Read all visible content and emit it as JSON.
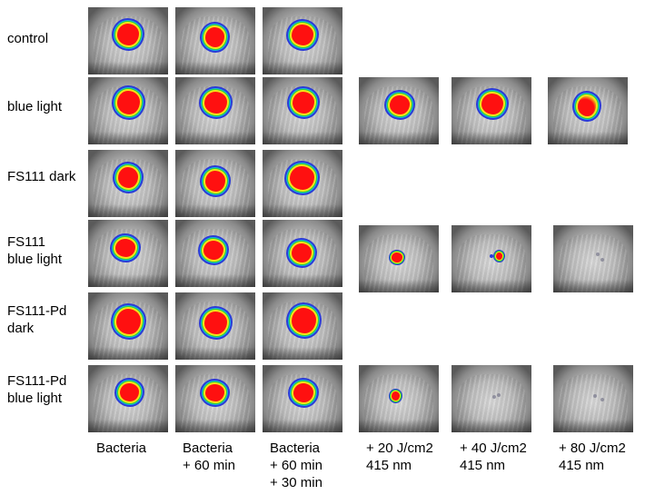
{
  "row_labels": [
    "control",
    "blue light",
    "FS111 dark",
    "FS111\nblue light",
    "FS111-Pd\ndark",
    "FS111-Pd\nblue light"
  ],
  "column_labels": [
    "Bacteria",
    "Bacteria\n+ 60 min",
    "Bacteria\n+ 60 min\n+ 30 min",
    "+ 20 J/cm2\n415 nm",
    "+ 40 J/cm2\n415 nm",
    "+ 80 J/cm2\n415 nm"
  ],
  "colors": {
    "signal_core": "#ff1010",
    "signal_ring_yellow": "#f3e418",
    "signal_ring_green": "#2bd13a",
    "signal_ring_blue": "#2a3bd8"
  }
}
